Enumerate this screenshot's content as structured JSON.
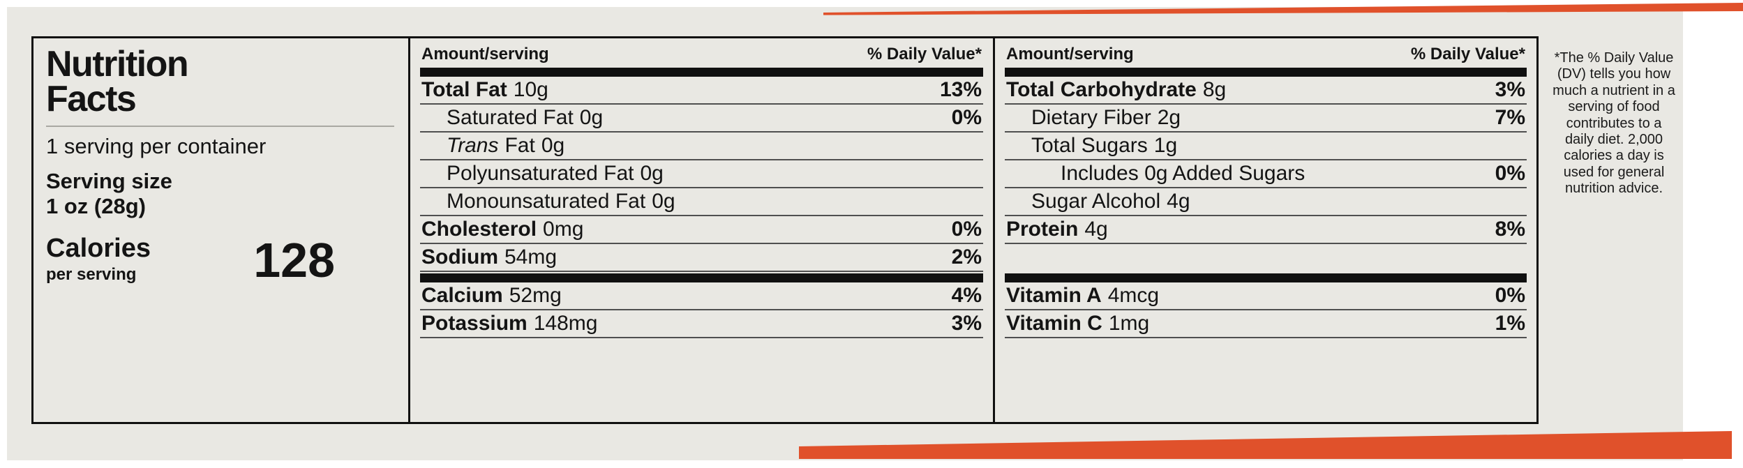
{
  "colors": {
    "accent": "#e0512b",
    "package_bg": "#e9e8e3",
    "ink": "#141414",
    "hairline": "#4f4f4f",
    "bar": "#101010"
  },
  "label": {
    "title_line1": "Nutrition",
    "title_line2": "Facts",
    "servings_per_container": "1 serving per container",
    "serving_size_label": "Serving size",
    "serving_size_value": "1 oz (28g)",
    "calories_label": "Calories",
    "calories_sublabel": "per serving",
    "calories_value": "128",
    "amount_header": "Amount/serving",
    "dv_header": "% Daily Value*",
    "footnote": "*The % Daily Value (DV) tells you how much a nutrient in a serving of food contributes to a daily diet. 2,000 calories a day is used for general nutrition advice."
  },
  "columns": [
    {
      "rows": [
        {
          "name": "Total Fat",
          "amount": "10g",
          "dv": "13%"
        },
        {
          "name": "Saturated Fat",
          "amount": "0g",
          "dv": "0%"
        },
        {
          "name_prefix": "Trans",
          "name": "Fat",
          "amount": "0g",
          "dv": ""
        },
        {
          "name": "Polyunsaturated Fat",
          "amount": "0g",
          "dv": ""
        },
        {
          "name": "Monounsaturated Fat",
          "amount": "0g",
          "dv": ""
        },
        {
          "name": "Cholesterol",
          "amount": "0mg",
          "dv": "0%"
        },
        {
          "name": "Sodium",
          "amount": "54mg",
          "dv": "2%"
        }
      ],
      "micronutrients": [
        {
          "name": "Calcium",
          "amount": "52mg",
          "dv": "4%"
        },
        {
          "name": "Potassium",
          "amount": "148mg",
          "dv": "3%"
        }
      ]
    },
    {
      "rows": [
        {
          "name": "Total Carbohydrate",
          "amount": "8g",
          "dv": "3%"
        },
        {
          "name": "Dietary Fiber",
          "amount": "2g",
          "dv": "7%"
        },
        {
          "name": "Total Sugars",
          "amount": "1g",
          "dv": ""
        },
        {
          "name": "Includes 0g Added Sugars",
          "amount": "",
          "dv": "0%"
        },
        {
          "name": "Sugar Alcohol",
          "amount": "4g",
          "dv": ""
        },
        {
          "name": "Protein",
          "amount": "4g",
          "dv": "8%"
        }
      ],
      "micronutrients": [
        {
          "name": "Vitamin A",
          "amount": "4mcg",
          "dv": "0%"
        },
        {
          "name": "Vitamin C",
          "amount": "1mg",
          "dv": "1%"
        }
      ]
    }
  ]
}
